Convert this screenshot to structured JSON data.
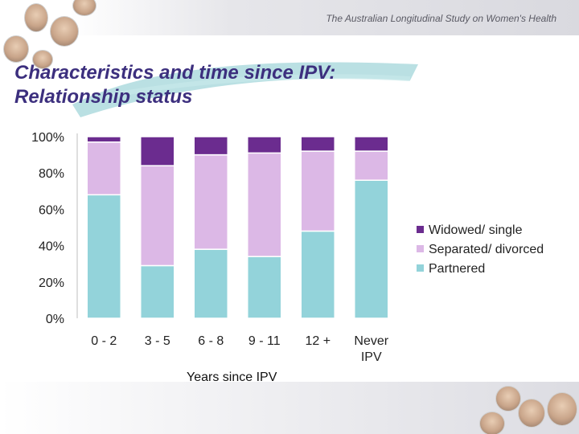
{
  "header": {
    "study_name": "The Australian Longitudinal Study on Women's Health"
  },
  "slide": {
    "title_line1": "Characteristics and time since IPV:",
    "title_line2": "Relationship status"
  },
  "colors": {
    "widowed": "#6b2c8f",
    "separated": "#dcb8e6",
    "partnered": "#93d3da",
    "title": "#3c2f7e"
  },
  "chart_data": {
    "type": "bar",
    "stacked": true,
    "categories": [
      "0 - 2",
      "3 - 5",
      "6 - 8",
      "9 - 11",
      "12 +",
      "Never IPV"
    ],
    "category_lines": [
      [
        "0 - 2"
      ],
      [
        "3 - 5"
      ],
      [
        "6 - 8"
      ],
      [
        "9 - 11"
      ],
      [
        "12 +"
      ],
      [
        "Never",
        "IPV"
      ]
    ],
    "series": [
      {
        "name": "Partnered",
        "values": [
          68,
          29,
          38,
          34,
          48,
          76
        ]
      },
      {
        "name": "Separated/ divorced",
        "values": [
          29,
          55,
          52,
          57,
          44,
          16
        ]
      },
      {
        "name": "Widowed/ single",
        "values": [
          3,
          16,
          10,
          9,
          8,
          8
        ]
      }
    ],
    "legend_order": [
      "Widowed/ single",
      "Separated/ divorced",
      "Partnered"
    ],
    "y_ticks": [
      "0%",
      "20%",
      "40%",
      "60%",
      "80%",
      "100%"
    ],
    "ylim": [
      0,
      100
    ],
    "xlabel": "Years since IPV",
    "ylabel": "",
    "legend_position": "right",
    "grid": false
  }
}
